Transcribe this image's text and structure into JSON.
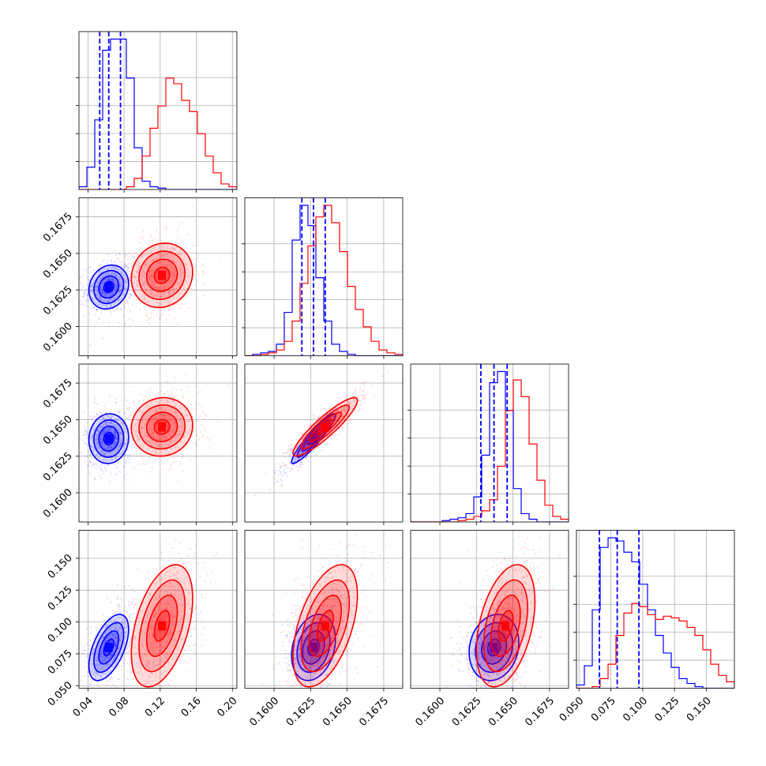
{
  "colors": {
    "series_a": "#0000ff",
    "series_b": "#ff0000",
    "grid": "#b0b0b0",
    "frame": "#000000"
  },
  "chart_data": {
    "type": "corner",
    "title": "",
    "parameters": [
      {
        "label": "",
        "range": [
          0.03,
          0.205
        ],
        "ticks": [
          0.04,
          0.08,
          0.12,
          0.16,
          0.2
        ],
        "tick_labels": [
          "0.04",
          "0.08",
          "0.12",
          "0.16",
          "0.20"
        ]
      },
      {
        "label": "",
        "range": [
          0.158,
          0.1688
        ],
        "ticks": [
          0.16,
          0.1625,
          0.165,
          0.1675
        ],
        "tick_labels": [
          "0.1600",
          "0.1625",
          "0.1650",
          "0.1675"
        ]
      },
      {
        "label": "",
        "range": [
          0.158,
          0.1688
        ],
        "ticks": [
          0.16,
          0.1625,
          0.165,
          0.1675
        ],
        "tick_labels": [
          "0.1600",
          "0.1625",
          "0.1650",
          "0.1675"
        ]
      },
      {
        "label": "",
        "range": [
          0.048,
          0.172
        ],
        "ticks": [
          0.05,
          0.075,
          0.1,
          0.125,
          0.15
        ],
        "tick_labels": [
          "0.050",
          "0.075",
          "0.100",
          "0.125",
          "0.150"
        ]
      }
    ],
    "series": [
      {
        "name": "",
        "color": "#0000ff",
        "mean": [
          0.063,
          0.1627,
          0.1637,
          0.08
        ],
        "std": [
          0.011,
          0.00075,
          0.00085,
          0.013
        ],
        "quantiles_16_50_84": [
          [
            0.053,
            0.063,
            0.076
          ],
          [
            0.1619,
            0.1627,
            0.1635
          ],
          [
            0.1628,
            0.1637,
            0.1646
          ],
          [
            0.066,
            0.08,
            0.097
          ]
        ],
        "histograms": [
          [
            1,
            8,
            25,
            50,
            54,
            54,
            40,
            15,
            3,
            1,
            0.5,
            0,
            0,
            0,
            0,
            0,
            0,
            0,
            0,
            0
          ],
          [
            0,
            0.5,
            1,
            1.5,
            4,
            15,
            40,
            52,
            45,
            27,
            12,
            4,
            1.5,
            0.5,
            0,
            0,
            0,
            0,
            0,
            0
          ],
          [
            0,
            0,
            0,
            0,
            0.5,
            1,
            1.5,
            3,
            9,
            24,
            50,
            54,
            40,
            12,
            3,
            1,
            0,
            0,
            0,
            0
          ],
          [
            0.2,
            1.4,
            4.9,
            8.8,
            9.4,
            9.2,
            8.5,
            7.9,
            6.5,
            4.9,
            3.3,
            2.2,
            1.3,
            0.6,
            0.3,
            0.1,
            0,
            0,
            0,
            0
          ]
        ]
      },
      {
        "name": "",
        "color": "#ff0000",
        "mean": [
          0.122,
          0.1635,
          0.1645,
          0.097
        ],
        "std": [
          0.017,
          0.0011,
          0.001,
          0.024
        ],
        "quantiles_16_50_84": null,
        "histograms": [
          [
            0,
            0,
            0,
            0,
            0,
            0,
            1,
            4,
            12,
            22,
            30,
            40,
            38,
            32,
            28,
            20,
            12,
            6,
            2,
            1
          ],
          [
            0,
            0,
            0.5,
            1,
            2,
            5,
            12,
            25,
            38,
            48,
            52,
            46,
            36,
            24,
            16,
            10,
            5,
            2,
            1,
            0.5
          ],
          [
            0,
            0,
            0,
            0,
            0,
            0,
            0.5,
            1,
            2,
            4,
            8,
            20,
            40,
            51,
            45,
            28,
            15,
            6,
            2,
            1
          ],
          [
            0,
            0,
            0.1,
            0.6,
            1.5,
            3.3,
            4.7,
            5.3,
            5.1,
            4.6,
            4.3,
            4.5,
            4.4,
            4.2,
            3.8,
            3.3,
            2.4,
            1.5,
            0.8,
            0.4
          ]
        ]
      }
    ],
    "correlations": {
      "series_a": {
        "1,0": 0.15,
        "2,0": 0.05,
        "2,1": 0.93,
        "3,0": 0.55,
        "3,1": 0.25,
        "3,2": 0.15
      },
      "series_b": {
        "1,0": 0.1,
        "2,0": 0.05,
        "2,1": 0.9,
        "3,0": 0.45,
        "3,1": 0.5,
        "3,2": 0.4
      }
    },
    "contour_levels_sigma": [
      0.5,
      1.0,
      1.5,
      2.0
    ],
    "grid": true,
    "legend": null
  }
}
